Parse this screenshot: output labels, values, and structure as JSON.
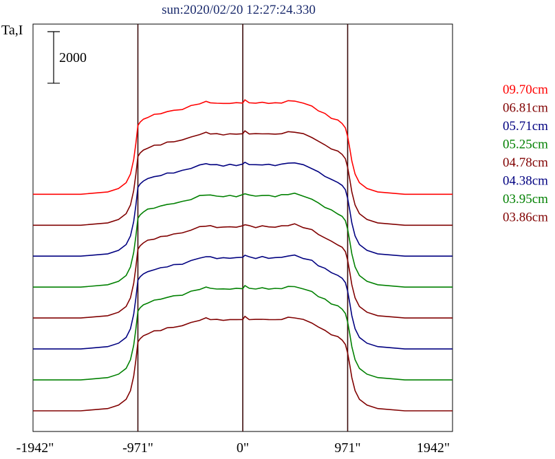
{
  "chart_data": {
    "type": "line",
    "title": "sun:2020/02/20 12:27:24.330",
    "ylabel": "Ta,I",
    "scale_bar_label": "2000",
    "scale_bar_value": 2000,
    "xlim": [
      -1942,
      1942
    ],
    "x_ticks": [
      -1942,
      -971,
      0,
      971,
      1942
    ],
    "x_tick_labels": [
      "-1942\"",
      "-971\"",
      "0\"",
      "971\"",
      "1942\""
    ],
    "vlines": [
      -971,
      0,
      971
    ],
    "grid": false,
    "legend_placement": "right",
    "profile_shape": {
      "x": [
        -1942,
        -1500,
        -1250,
        -1150,
        -1080,
        -1040,
        -1010,
        -990,
        -971,
        -950,
        -920,
        -880,
        -820,
        -760,
        -700,
        -640,
        -560,
        -480,
        -400,
        -340,
        -300,
        -240,
        -180,
        -120,
        -60,
        0,
        20,
        60,
        120,
        180,
        240,
        300,
        360,
        420,
        480,
        560,
        640,
        700,
        760,
        820,
        880,
        920,
        950,
        971,
        990,
        1010,
        1040,
        1080,
        1150,
        1250,
        1500,
        1942
      ],
      "y": [
        0,
        0,
        80,
        200,
        400,
        700,
        1200,
        1750,
        2380,
        2500,
        2600,
        2680,
        2750,
        2800,
        2860,
        2900,
        2950,
        3050,
        3150,
        3200,
        3180,
        3150,
        3140,
        3160,
        3150,
        3180,
        3250,
        3180,
        3150,
        3180,
        3160,
        3150,
        3180,
        3220,
        3240,
        3150,
        3050,
        2900,
        2780,
        2650,
        2550,
        2450,
        2300,
        2000,
        1600,
        1150,
        700,
        400,
        200,
        80,
        0,
        0
      ]
    },
    "series": [
      {
        "name": "09.70cm",
        "color": "#ff0000",
        "offset": 8400,
        "gain": 1.12
      },
      {
        "name": "06.81cm",
        "color": "#800000",
        "offset": 7200,
        "gain": 1.12
      },
      {
        "name": "05.71cm",
        "color": "#000080",
        "offset": 6000,
        "gain": 1.12
      },
      {
        "name": "05.25cm",
        "color": "#008000",
        "offset": 4800,
        "gain": 1.12
      },
      {
        "name": "04.78cm",
        "color": "#800000",
        "offset": 3600,
        "gain": 1.12
      },
      {
        "name": "04.38cm",
        "color": "#000080",
        "offset": 2400,
        "gain": 1.12
      },
      {
        "name": "03.95cm",
        "color": "#008000",
        "offset": 1200,
        "gain": 1.12
      },
      {
        "name": "03.86cm",
        "color": "#800000",
        "offset": 0,
        "gain": 1.12
      }
    ],
    "ylim": [
      -800,
      15000
    ]
  }
}
